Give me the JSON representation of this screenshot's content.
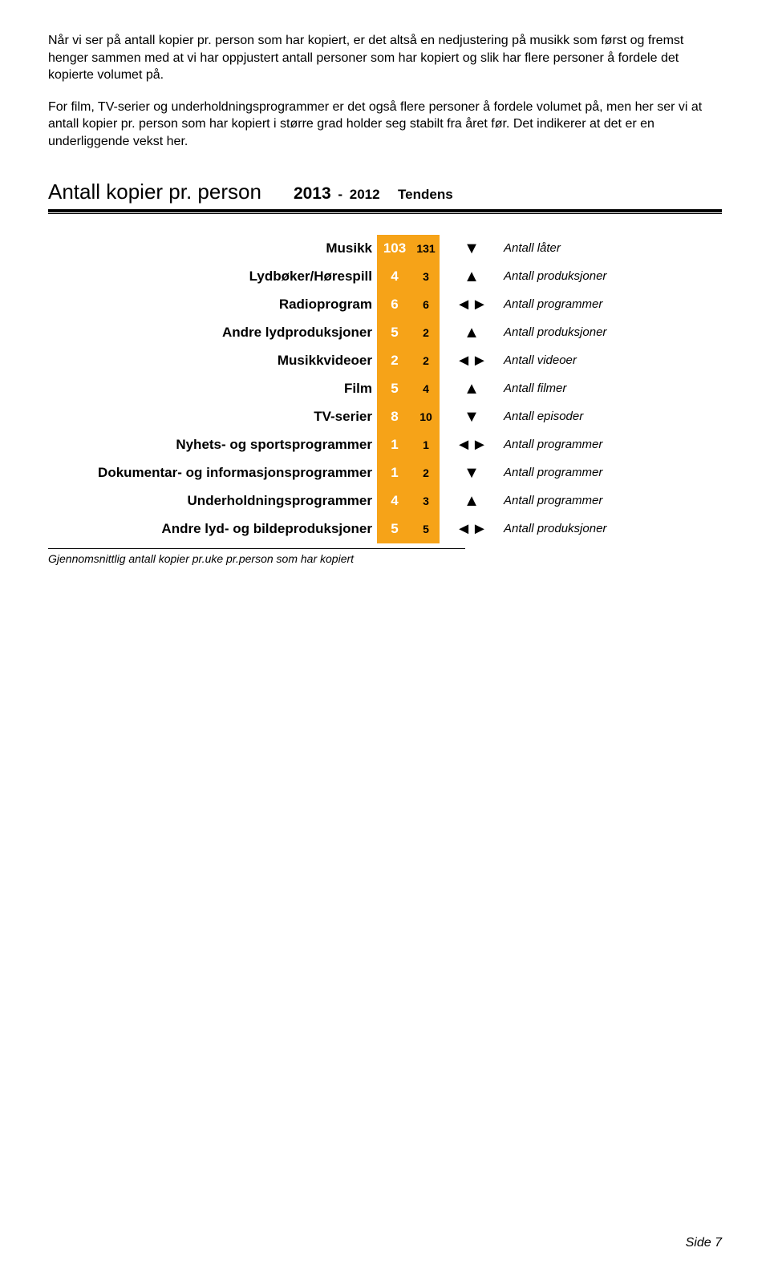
{
  "paragraphs": {
    "p1": "Når vi ser på antall kopier pr. person som har kopiert, er det altså en nedjustering på musikk som først og fremst henger sammen med at vi har oppjustert antall personer som har kopiert og slik har flere personer å fordele det kopierte volumet på.",
    "p2": "For film, TV-serier og underholdningsprogrammer er det også flere personer å fordele volumet på, men her ser vi at antall kopier pr. person som har kopiert i større grad holder seg stabilt fra året før. Det indikerer at det er en underliggende vekst her."
  },
  "section": {
    "title": "Antall kopier pr. person",
    "year1": "2013",
    "dash": " - ",
    "year2": "2012",
    "tendens": "Tendens"
  },
  "colors": {
    "cell_bg": "#f6a318",
    "text_white": "#ffffff"
  },
  "rows": [
    {
      "label": "Musikk",
      "v1": "103",
      "v2": "131",
      "trend": "▼",
      "desc": "Antall låter"
    },
    {
      "label": "Lydbøker/Hørespill",
      "v1": "4",
      "v2": "3",
      "trend": "▲",
      "desc": "Antall produksjoner"
    },
    {
      "label": "Radioprogram",
      "v1": "6",
      "v2": "6",
      "trend": "◄►",
      "desc": "Antall programmer"
    },
    {
      "label": "Andre lydproduksjoner",
      "v1": "5",
      "v2": "2",
      "trend": "▲",
      "desc": "Antall produksjoner"
    },
    {
      "label": "Musikkvideoer",
      "v1": "2",
      "v2": "2",
      "trend": "◄►",
      "desc": "Antall videoer"
    },
    {
      "label": "Film",
      "v1": "5",
      "v2": "4",
      "trend": "▲",
      "desc": "Antall filmer"
    },
    {
      "label": "TV-serier",
      "v1": "8",
      "v2": "10",
      "trend": "▼",
      "desc": "Antall episoder"
    },
    {
      "label": "Nyhets- og sportsprogrammer",
      "v1": "1",
      "v2": "1",
      "trend": "◄►",
      "desc": "Antall programmer"
    },
    {
      "label": "Dokumentar- og informasjonsprogrammer",
      "v1": "1",
      "v2": "2",
      "trend": "▼",
      "desc": "Antall programmer"
    },
    {
      "label": "Underholdningsprogrammer",
      "v1": "4",
      "v2": "3",
      "trend": "▲",
      "desc": "Antall programmer"
    },
    {
      "label": "Andre lyd- og bildeproduksjoner",
      "v1": "5",
      "v2": "5",
      "trend": "◄►",
      "desc": "Antall produksjoner"
    }
  ],
  "footnote": "Gjennomsnittlig antall kopier pr.uke pr.person som har kopiert",
  "page": "Side 7"
}
